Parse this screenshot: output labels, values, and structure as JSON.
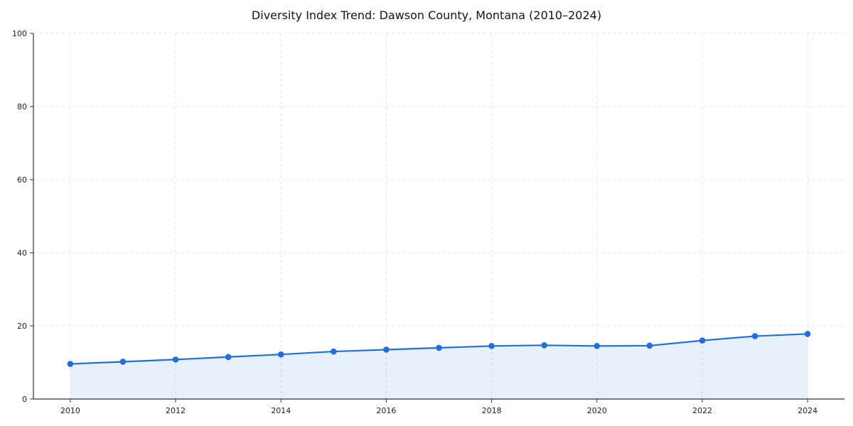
{
  "figure": {
    "title": "Diversity Index Trend: Dawson County, Montana (2010–2024)"
  },
  "chart_data": {
    "type": "line",
    "title": "Diversity Index Trend: Dawson County, Montana (2010–2024)",
    "xlabel": "",
    "ylabel": "",
    "x": [
      2010,
      2011,
      2012,
      2013,
      2014,
      2015,
      2016,
      2017,
      2018,
      2019,
      2020,
      2021,
      2022,
      2023,
      2024
    ],
    "series": [
      {
        "name": "Diversity Index",
        "values": [
          9.6,
          10.2,
          10.8,
          11.5,
          12.2,
          13.0,
          13.5,
          14.0,
          14.5,
          14.7,
          14.5,
          14.6,
          16.0,
          17.2,
          17.8
        ]
      }
    ],
    "ylim": [
      0,
      100
    ],
    "yticks": [
      0,
      20,
      40,
      60,
      80,
      100
    ],
    "xticks": [
      2010,
      2012,
      2014,
      2016,
      2018,
      2020,
      2022,
      2024
    ],
    "grid": true,
    "legend": "none",
    "colors": {
      "line": "#1f6fe0",
      "marker": "#1f6fe0",
      "fill": "rgba(31,111,224,0.10)",
      "grid": "#e6e6e6",
      "axis": "#333333",
      "tick_label": "#222222"
    }
  }
}
